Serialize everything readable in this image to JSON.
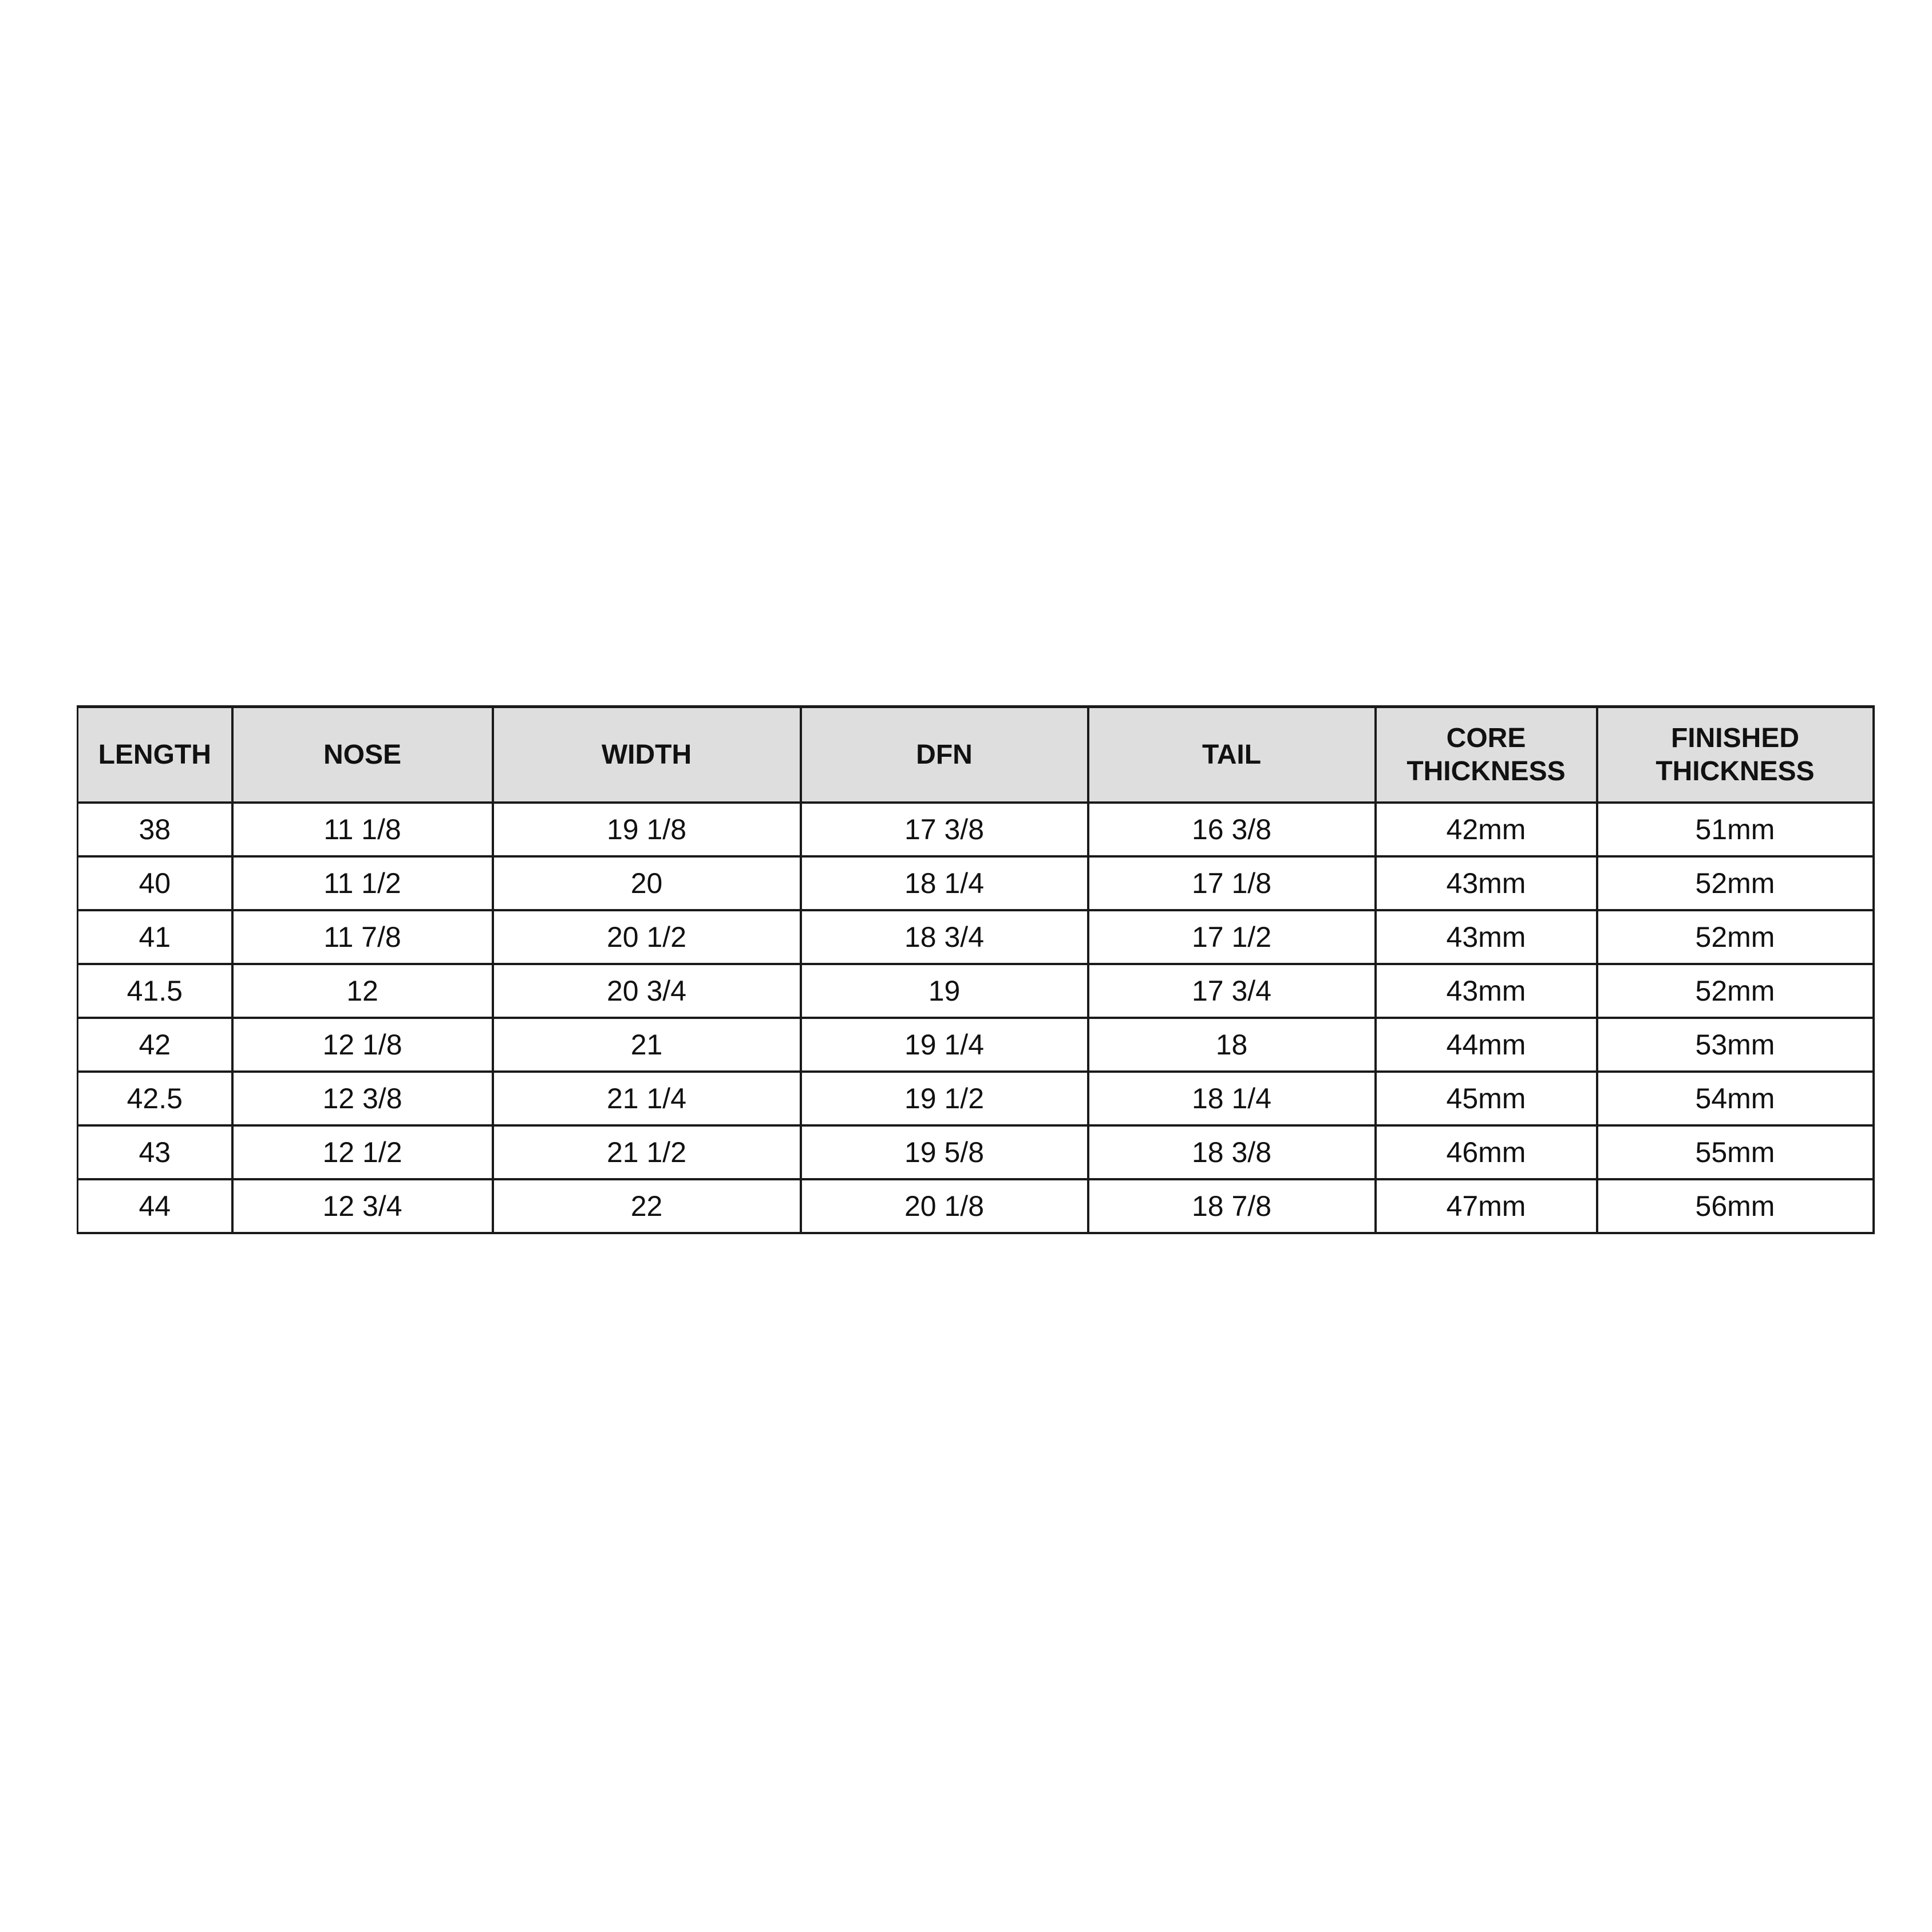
{
  "table": {
    "headers": [
      [
        "LENGTH"
      ],
      [
        "NOSE"
      ],
      [
        "WIDTH"
      ],
      [
        "DFN"
      ],
      [
        "TAIL"
      ],
      [
        "CORE",
        "THICKNESS"
      ],
      [
        "FINISHED",
        "THICKNESS"
      ]
    ],
    "rows": [
      [
        "38",
        "11 1/8",
        "19 1/8",
        "17 3/8",
        "16 3/8",
        "42mm",
        "51mm"
      ],
      [
        "40",
        "11 1/2",
        "20",
        "18 1/4",
        "17 1/8",
        "43mm",
        "52mm"
      ],
      [
        "41",
        "11 7/8",
        "20 1/2",
        "18 3/4",
        "17 1/2",
        "43mm",
        "52mm"
      ],
      [
        "41.5",
        "12",
        "20 3/4",
        "19",
        "17 3/4",
        "43mm",
        "52mm"
      ],
      [
        "42",
        "12 1/8",
        "21",
        "19 1/4",
        "18",
        "44mm",
        "53mm"
      ],
      [
        "42.5",
        "12 3/8",
        "21 1/4",
        "19 1/2",
        "18 1/4",
        "45mm",
        "54mm"
      ],
      [
        "43",
        "12 1/2",
        "21 1/2",
        "19 5/8",
        "18 3/8",
        "46mm",
        "55mm"
      ],
      [
        "44",
        "12 3/4",
        "22",
        "20 1/8",
        "18 7/8",
        "47mm",
        "56mm"
      ]
    ]
  },
  "colors": {
    "header_bg": "#dedede",
    "border": "#1a1a1a",
    "text": "#111111"
  }
}
